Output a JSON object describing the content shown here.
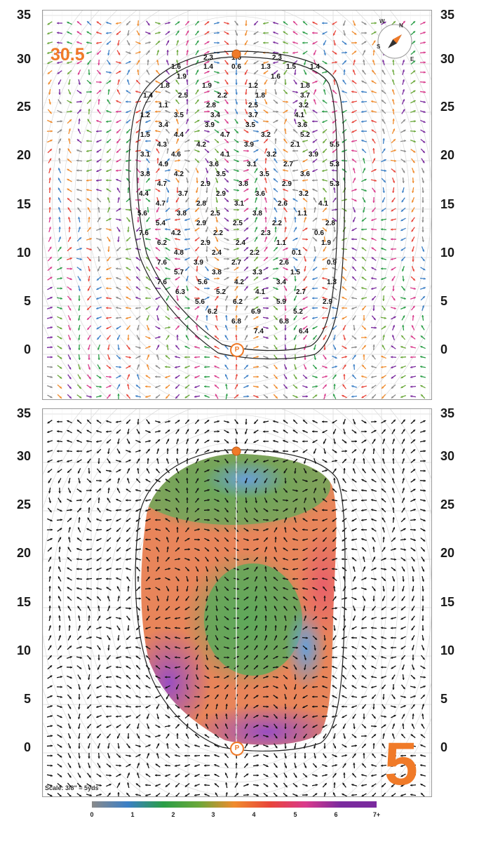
{
  "map": {
    "y_ticks": [
      "35",
      "30",
      "25",
      "20",
      "15",
      "10",
      "5",
      "0"
    ],
    "yardage": "30.5",
    "hole_number": "5",
    "scale_note": "Scale: 3/8\" = 5yds",
    "pin_marker": "P",
    "compass_letters": [
      "N",
      "E",
      "S",
      "W"
    ]
  },
  "slope_values": [
    [
      "2.3",
      "1.6",
      "2.3"
    ],
    [
      "1.6",
      "1.4",
      "0.6",
      "1.3",
      "1.5",
      "1.4"
    ],
    [
      "1.9",
      "1.6"
    ],
    [
      "1.8",
      "1.9",
      "1.2",
      "1.8"
    ],
    [
      "1.4",
      "2.5",
      "2.2",
      "1.8",
      "3.7"
    ],
    [
      "1.1",
      "2.8",
      "2.5",
      "3.2"
    ],
    [
      "1.2",
      "3.5",
      "3.4",
      "3.7",
      "4.1"
    ],
    [
      "3.4",
      "3.9",
      "3.5",
      "3.6"
    ],
    [
      "1.5",
      "4.4",
      "4.7",
      "3.2",
      "5.2"
    ],
    [
      "4.3",
      "4.2",
      "3.9",
      "2.1",
      "5.5"
    ],
    [
      "3.1",
      "4.6",
      "4.1",
      "3.2",
      "3.9"
    ],
    [
      "4.9",
      "3.6",
      "3.1",
      "2.7",
      "5.3"
    ],
    [
      "3.8",
      "4.2",
      "3.5",
      "3.5",
      "3.6"
    ],
    [
      "4.7",
      "2.9",
      "3.8",
      "2.9",
      "5.3"
    ],
    [
      "4.4",
      "3.7",
      "2.9",
      "3.6",
      "3.2"
    ],
    [
      "4.7",
      "2.8",
      "3.1",
      "2.6",
      "4.1"
    ],
    [
      "5.6",
      "3.8",
      "2.5",
      "3.8",
      "1.1"
    ],
    [
      "5.4",
      "2.9",
      "2.5",
      "2.2",
      "2.8"
    ],
    [
      "7.6",
      "4.2",
      "2.2",
      "2.3",
      "0.6"
    ],
    [
      "6.2",
      "2.9",
      "2.4",
      "1.1",
      "1.9"
    ],
    [
      "4.8",
      "2.4",
      "2.2",
      "0.1"
    ],
    [
      "7.6",
      "3.9",
      "2.7",
      "2.6",
      "0.9"
    ],
    [
      "5.7",
      "3.8",
      "3.3",
      "1.5"
    ],
    [
      "7.6",
      "5.6",
      "4.2",
      "3.4",
      "1.3"
    ],
    [
      "6.3",
      "5.2",
      "4.1",
      "2.7"
    ],
    [
      "5.6",
      "6.2",
      "5.9",
      "2.9"
    ],
    [
      "6.2",
      "6.9",
      "5.2"
    ],
    [
      "6.8",
      "6.8"
    ],
    [
      "7.4",
      "6.4"
    ]
  ],
  "legend": {
    "labels": [
      "0",
      "1",
      "2",
      "3",
      "4",
      "5",
      "6",
      "7+"
    ],
    "colors": [
      "#8a8a8a",
      "#3b7fc6",
      "#2a9e47",
      "#6aa83a",
      "#f08b2c",
      "#e8453a",
      "#d93a8c",
      "#7a2a9e"
    ]
  }
}
